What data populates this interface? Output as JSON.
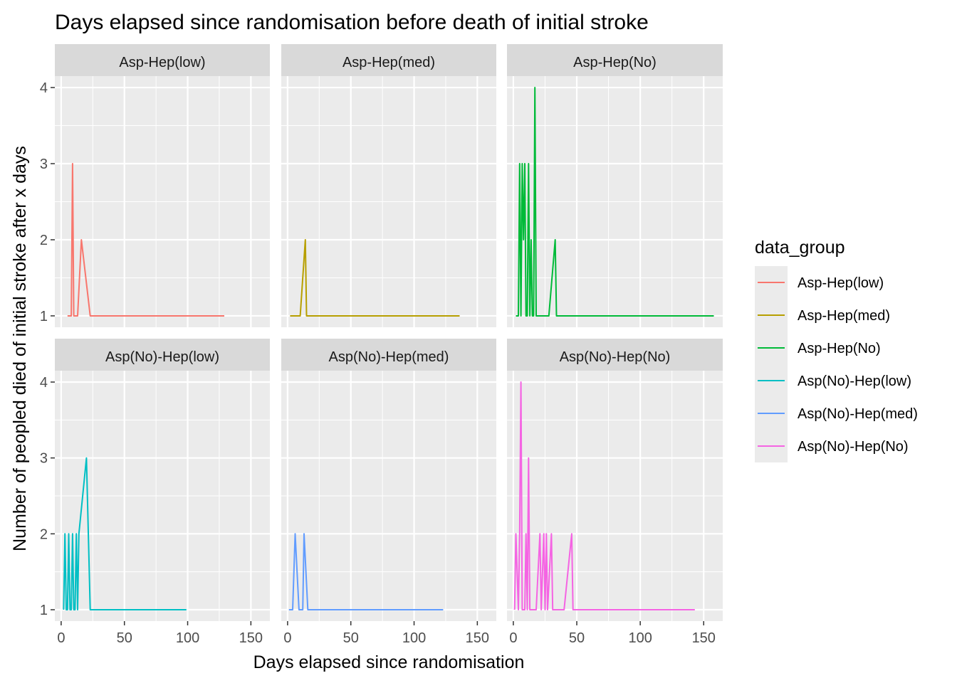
{
  "chart_data": {
    "type": "line",
    "title": "Days elapsed since randomisation before death of initial stroke",
    "xlabel": "Days elapsed since randomisation",
    "ylabel": "Number of peopled died of initial stroke after x days",
    "xlim": [
      -5,
      165
    ],
    "ylim": [
      0.85,
      4.15
    ],
    "x_ticks": [
      "0",
      "50",
      "100",
      "150"
    ],
    "y_ticks": [
      "1",
      "2",
      "3",
      "4"
    ],
    "grid": true,
    "legend": {
      "title": "data_group",
      "position": "right"
    },
    "facets": [
      {
        "name": "Asp-Hep(low)",
        "color": "#F8766D",
        "points": [
          [
            5,
            1
          ],
          [
            8,
            1
          ],
          [
            9,
            3
          ],
          [
            10,
            1
          ],
          [
            13,
            1
          ],
          [
            16,
            2
          ],
          [
            23,
            1
          ],
          [
            129,
            1
          ]
        ]
      },
      {
        "name": "Asp-Hep(med)",
        "color": "#B79F00",
        "points": [
          [
            2,
            1
          ],
          [
            10,
            1
          ],
          [
            14,
            2
          ],
          [
            15,
            1
          ],
          [
            136,
            1
          ]
        ]
      },
      {
        "name": "Asp-Hep(No)",
        "color": "#00BA38",
        "points": [
          [
            2,
            1
          ],
          [
            4,
            1
          ],
          [
            5,
            3
          ],
          [
            6,
            1
          ],
          [
            7,
            3
          ],
          [
            8,
            2
          ],
          [
            9,
            3
          ],
          [
            10,
            1
          ],
          [
            11,
            1
          ],
          [
            12,
            3
          ],
          [
            13,
            1
          ],
          [
            14,
            2
          ],
          [
            15,
            1
          ],
          [
            16,
            1
          ],
          [
            17,
            4
          ],
          [
            18,
            1
          ],
          [
            20,
            1
          ],
          [
            28,
            1
          ],
          [
            33,
            2
          ],
          [
            34,
            1
          ],
          [
            158,
            1
          ]
        ]
      },
      {
        "name": "Asp(No)-Hep(low)",
        "color": "#00BFC4",
        "points": [
          [
            2,
            1
          ],
          [
            3,
            2
          ],
          [
            4,
            1
          ],
          [
            5,
            1
          ],
          [
            6,
            2
          ],
          [
            7,
            1
          ],
          [
            8,
            1
          ],
          [
            9,
            2
          ],
          [
            10,
            1
          ],
          [
            11,
            1
          ],
          [
            12,
            2
          ],
          [
            13,
            1
          ],
          [
            14,
            2
          ],
          [
            20,
            3
          ],
          [
            23,
            1
          ],
          [
            99,
            1
          ]
        ]
      },
      {
        "name": "Asp(No)-Hep(med)",
        "color": "#619CFF",
        "points": [
          [
            1,
            1
          ],
          [
            4,
            1
          ],
          [
            6,
            2
          ],
          [
            9,
            1
          ],
          [
            12,
            1
          ],
          [
            13,
            2
          ],
          [
            16,
            1
          ],
          [
            123,
            1
          ]
        ]
      },
      {
        "name": "Asp(No)-Hep(No)",
        "color": "#F564E3",
        "points": [
          [
            1,
            1
          ],
          [
            2,
            2
          ],
          [
            4,
            1
          ],
          [
            5,
            2
          ],
          [
            6,
            4
          ],
          [
            7,
            1
          ],
          [
            9,
            1
          ],
          [
            10,
            2
          ],
          [
            11,
            1
          ],
          [
            12,
            3
          ],
          [
            13,
            1
          ],
          [
            18,
            1
          ],
          [
            21,
            2
          ],
          [
            22,
            1
          ],
          [
            24,
            2
          ],
          [
            25,
            1
          ],
          [
            26,
            2
          ],
          [
            27,
            1
          ],
          [
            30,
            2
          ],
          [
            31,
            1
          ],
          [
            40,
            1
          ],
          [
            46,
            2
          ],
          [
            47,
            1
          ],
          [
            143,
            1
          ]
        ]
      }
    ]
  }
}
